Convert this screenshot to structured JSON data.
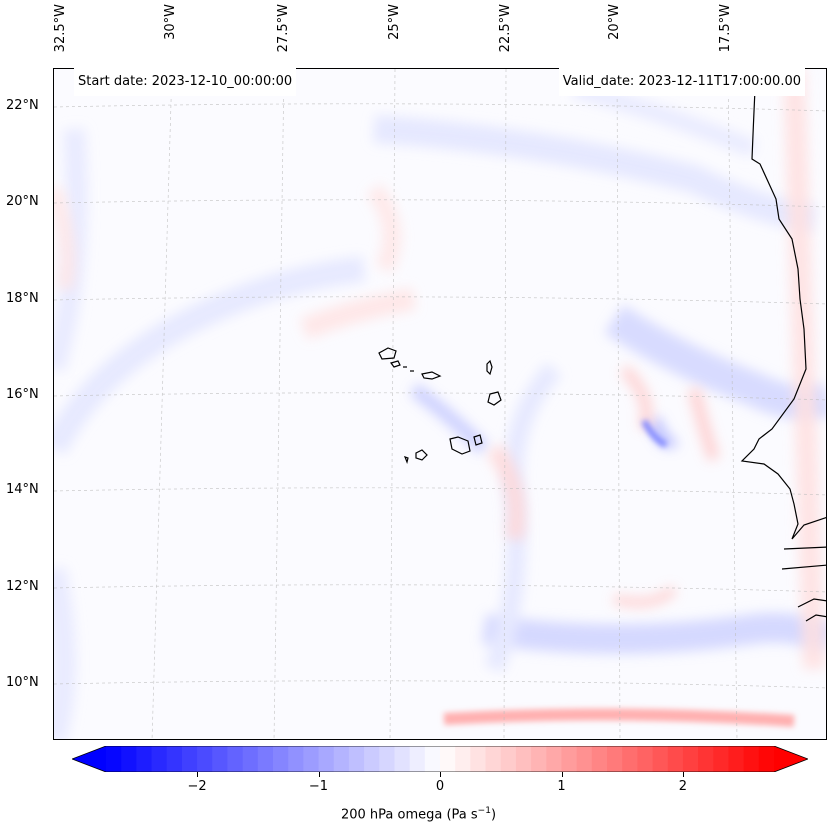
{
  "map": {
    "start_date": "Start date: 2023-12-10_00:00:00",
    "valid_date": "Valid_date: 2023-12-11T17:00:00.00",
    "lon_labels": [
      "32.5°W",
      "30°W",
      "27.5°W",
      "25°W",
      "22.5°W",
      "20°W",
      "17.5°W"
    ],
    "lat_labels": [
      "22°N",
      "20°N",
      "18°N",
      "16°N",
      "14°N",
      "12°N",
      "10°N"
    ]
  },
  "colorbar": {
    "label": "200 hPa omega (Pa s",
    "label_sup": "−1",
    "label_end": ")",
    "ticks": [
      "−2",
      "−1",
      "0",
      "1",
      "2"
    ],
    "tick_values": [
      -2,
      -1,
      0,
      1,
      2
    ],
    "range": [
      -2.75,
      2.75
    ],
    "colors": {
      "neg": "#0000ff",
      "mid": "#ffffff",
      "pos": "#ff0000"
    }
  }
}
